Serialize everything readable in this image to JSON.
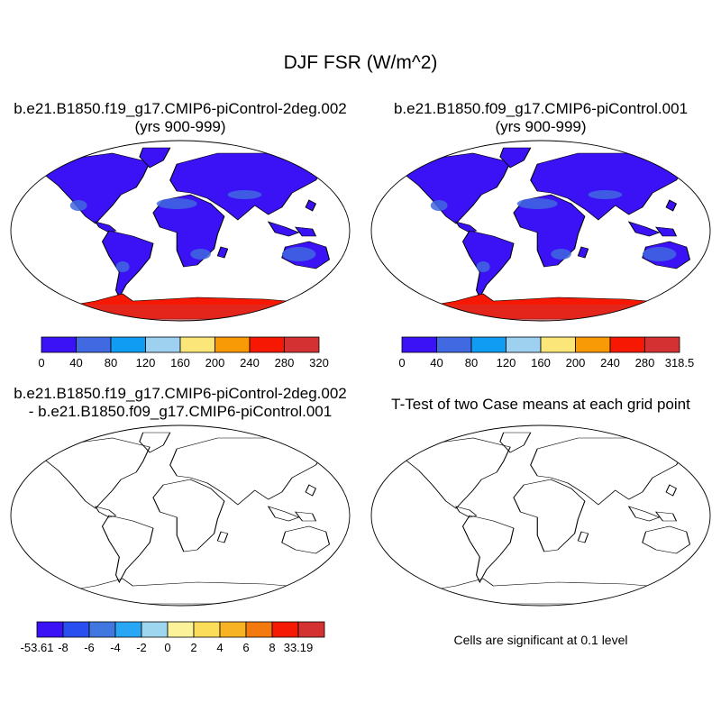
{
  "title": "DJF FSR (W/m^2)",
  "panels": [
    {
      "title_line1": "b.e21.B1850.f19_g17.CMIP6-piControl-2deg.002",
      "title_line2": "(yrs 900-999)",
      "colors": [
        "#3a12f5",
        "#4169e1",
        "#109cf3",
        "#9ed0ef",
        "#fbe67a",
        "#f89a05",
        "#f71804",
        "#d43232"
      ],
      "labels": [
        "0",
        "40",
        "80",
        "120",
        "160",
        "200",
        "240",
        "280",
        "320"
      ],
      "land_color": "#3a12f5",
      "ocean_land_mix": [
        "#4169e1"
      ],
      "antarctica_color": "#f71804"
    },
    {
      "title_line1": "b.e21.B1850.f09_g17.CMIP6-piControl.001",
      "title_line2": "(yrs 900-999)",
      "colors": [
        "#3a12f5",
        "#4169e1",
        "#109cf3",
        "#9ed0ef",
        "#fbe67a",
        "#f89a05",
        "#f71804",
        "#d43232"
      ],
      "labels": [
        "0",
        "40",
        "80",
        "120",
        "160",
        "200",
        "240",
        "280",
        "318.5"
      ],
      "land_color": "#3a12f5",
      "antarctica_color": "#f71804"
    },
    {
      "title_line1": "b.e21.B1850.f19_g17.CMIP6-piControl-2deg.002",
      "title_line2": "- b.e21.B1850.f09_g17.CMIP6-piControl.001",
      "colors": [
        "#3a12f5",
        "#2a4ff0",
        "#4178e0",
        "#2aa7f4",
        "#9ed5ef",
        "#fbf29a",
        "#fbdd5a",
        "#f8b324",
        "#f47a10",
        "#f41a04",
        "#d43232"
      ],
      "labels": [
        "-53.61",
        "-8",
        "-6",
        "-4",
        "-2",
        "0",
        "2",
        "4",
        "6",
        "8",
        "33.19"
      ]
    },
    {
      "title_line1": "T-Test of two Case means at each grid point",
      "note": "Cells are significant at 0.1 level",
      "land_color": "#f41a04"
    }
  ]
}
